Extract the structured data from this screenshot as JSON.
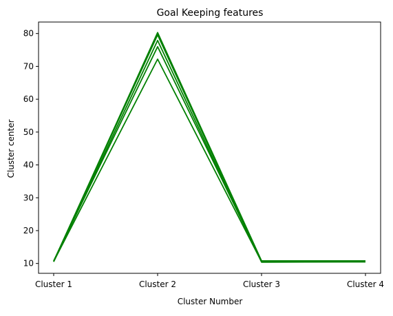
{
  "chart_data": {
    "type": "line",
    "title": "Goal Keeping features",
    "xlabel": "Cluster Number",
    "ylabel": "Cluster center",
    "categories": [
      "Cluster 1",
      "Cluster 2",
      "Cluster 3",
      "Cluster 4"
    ],
    "yticks": [
      10,
      20,
      30,
      40,
      50,
      60,
      70,
      80
    ],
    "ylim": [
      7,
      83.5
    ],
    "grid": false,
    "legend": "none",
    "line_color": "#008000",
    "series": [
      {
        "values": [
          10.6,
          80.3,
          10.8,
          10.8
        ]
      },
      {
        "values": [
          10.7,
          79.6,
          10.6,
          10.7
        ]
      },
      {
        "values": [
          10.5,
          77.9,
          10.4,
          10.5
        ]
      },
      {
        "values": [
          10.8,
          76.0,
          10.7,
          10.6
        ]
      },
      {
        "values": [
          10.6,
          72.2,
          10.5,
          10.5
        ]
      }
    ]
  }
}
